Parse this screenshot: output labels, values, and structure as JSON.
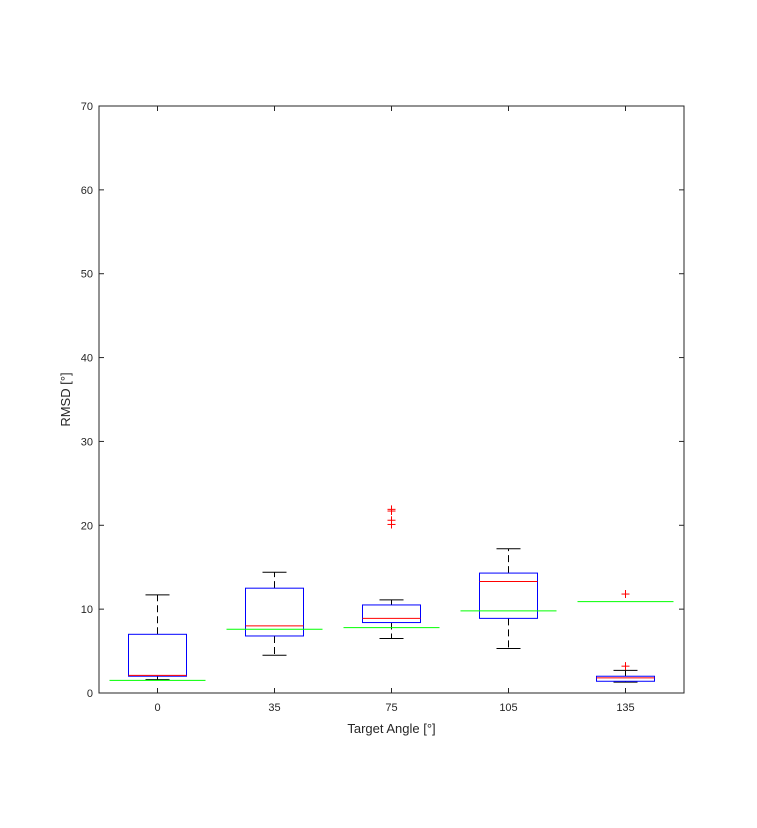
{
  "chart_data": {
    "type": "boxplot",
    "title": "",
    "xlabel": "Target Angle [°]",
    "ylabel": "RMSD [°]",
    "ylim": [
      0,
      70
    ],
    "yticks": [
      0,
      10,
      20,
      30,
      40,
      50,
      60,
      70
    ],
    "categories": [
      "0",
      "35",
      "75",
      "105",
      "135"
    ],
    "grid": false,
    "legend": "none",
    "colors": {
      "box": "#0000ff",
      "median": "#ff0000",
      "whisker": "#000000",
      "outlier": "#ff0000",
      "reference": "#00ff00",
      "axis": "#262626"
    },
    "boxes": [
      {
        "category": "0",
        "whisker_low": 1.6,
        "q1": 2.0,
        "median": 2.1,
        "q3": 7.0,
        "whisker_high": 11.7,
        "outliers": []
      },
      {
        "category": "35",
        "whisker_low": 4.5,
        "q1": 6.8,
        "median": 8.0,
        "q3": 12.5,
        "whisker_high": 14.4,
        "outliers": []
      },
      {
        "category": "75",
        "whisker_low": 6.5,
        "q1": 8.4,
        "median": 8.9,
        "q3": 10.5,
        "whisker_high": 11.1,
        "outliers": [
          20.1,
          20.6,
          21.7,
          21.9
        ]
      },
      {
        "category": "105",
        "whisker_low": 5.3,
        "q1": 8.9,
        "median": 13.3,
        "q3": 14.3,
        "whisker_high": 17.2,
        "outliers": []
      },
      {
        "category": "135",
        "whisker_low": 1.3,
        "q1": 1.4,
        "median": 1.8,
        "q3": 2.0,
        "whisker_high": 2.7,
        "outliers": [
          3.2,
          11.8
        ]
      }
    ],
    "reference_lines": [
      {
        "category": "0",
        "value": 1.5
      },
      {
        "category": "35",
        "value": 7.6
      },
      {
        "category": "75",
        "value": 7.8
      },
      {
        "category": "105",
        "value": 9.8
      },
      {
        "category": "135",
        "value": 10.9
      }
    ]
  }
}
